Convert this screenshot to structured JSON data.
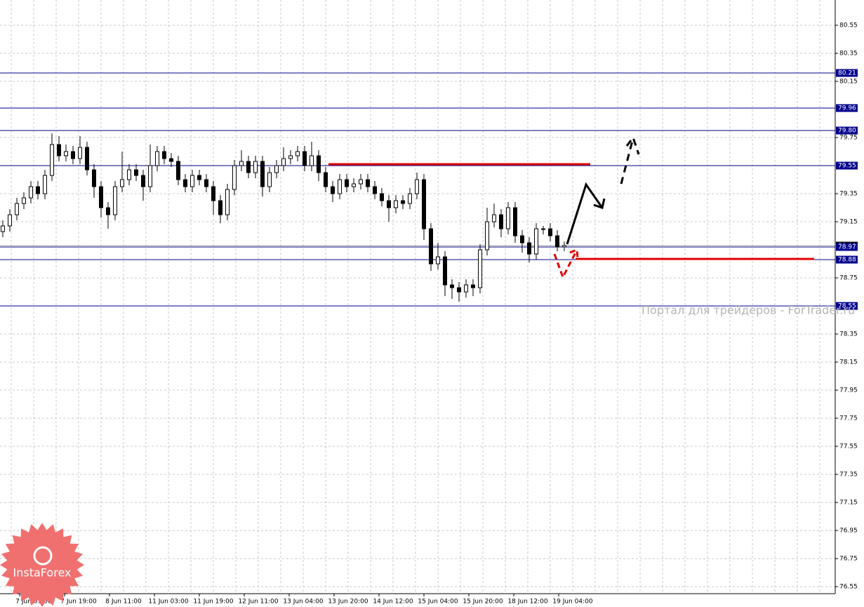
{
  "chart_data": {
    "type": "candlestick",
    "candles": [
      [
        79.08,
        79.16,
        79.04,
        79.12
      ],
      [
        79.12,
        79.24,
        79.08,
        79.2
      ],
      [
        79.2,
        79.32,
        79.16,
        79.28
      ],
      [
        79.28,
        79.36,
        79.24,
        79.32
      ],
      [
        79.32,
        79.44,
        79.28,
        79.4
      ],
      [
        79.4,
        79.44,
        79.31,
        79.35
      ],
      [
        79.35,
        79.52,
        79.31,
        79.48
      ],
      [
        79.48,
        79.78,
        79.44,
        79.7
      ],
      [
        79.7,
        79.76,
        79.58,
        79.62
      ],
      [
        79.62,
        79.7,
        79.58,
        79.65
      ],
      [
        79.65,
        79.69,
        79.56,
        79.6
      ],
      [
        79.6,
        79.76,
        79.56,
        79.68
      ],
      [
        79.68,
        79.72,
        79.48,
        79.52
      ],
      [
        79.52,
        79.56,
        79.32,
        79.4
      ],
      [
        79.4,
        79.44,
        79.18,
        79.25
      ],
      [
        79.25,
        79.29,
        79.1,
        79.2
      ],
      [
        79.2,
        79.44,
        79.16,
        79.4
      ],
      [
        79.4,
        79.65,
        79.36,
        79.45
      ],
      [
        79.45,
        79.56,
        79.41,
        79.52
      ],
      [
        79.52,
        79.56,
        79.44,
        79.48
      ],
      [
        79.48,
        79.52,
        79.3,
        79.4
      ],
      [
        79.4,
        79.7,
        79.36,
        79.55
      ],
      [
        79.55,
        79.69,
        79.51,
        79.65
      ],
      [
        79.65,
        79.69,
        79.56,
        79.6
      ],
      [
        79.6,
        79.64,
        79.54,
        79.58
      ],
      [
        79.58,
        79.62,
        79.41,
        79.45
      ],
      [
        79.45,
        79.49,
        79.36,
        79.4
      ],
      [
        79.4,
        79.52,
        79.36,
        79.48
      ],
      [
        79.48,
        79.52,
        79.41,
        79.45
      ],
      [
        79.45,
        79.49,
        79.36,
        79.4
      ],
      [
        79.4,
        79.44,
        79.2,
        79.3
      ],
      [
        79.3,
        79.34,
        79.14,
        79.2
      ],
      [
        79.2,
        79.42,
        79.16,
        79.38
      ],
      [
        79.38,
        79.59,
        79.34,
        79.55
      ],
      [
        79.55,
        79.66,
        79.51,
        79.58
      ],
      [
        79.58,
        79.62,
        79.46,
        79.5
      ],
      [
        79.5,
        79.62,
        79.46,
        79.58
      ],
      [
        79.58,
        79.62,
        79.33,
        79.4
      ],
      [
        79.4,
        79.54,
        79.36,
        79.5
      ],
      [
        79.5,
        79.59,
        79.46,
        79.55
      ],
      [
        79.55,
        79.68,
        79.51,
        79.6
      ],
      [
        79.6,
        79.66,
        79.56,
        79.62
      ],
      [
        79.62,
        79.69,
        79.58,
        79.65
      ],
      [
        79.65,
        79.69,
        79.51,
        79.55
      ],
      [
        79.55,
        79.72,
        79.51,
        79.62
      ],
      [
        79.62,
        79.66,
        79.44,
        79.5
      ],
      [
        79.5,
        79.54,
        79.36,
        79.4
      ],
      [
        79.4,
        79.44,
        79.29,
        79.35
      ],
      [
        79.35,
        79.49,
        79.31,
        79.45
      ],
      [
        79.45,
        79.49,
        79.36,
        79.4
      ],
      [
        79.4,
        79.46,
        79.36,
        79.42
      ],
      [
        79.42,
        79.49,
        79.38,
        79.45
      ],
      [
        79.45,
        79.49,
        79.36,
        79.4
      ],
      [
        79.4,
        79.44,
        79.31,
        79.35
      ],
      [
        79.35,
        79.39,
        79.26,
        79.3
      ],
      [
        79.3,
        79.34,
        79.15,
        79.25
      ],
      [
        79.25,
        79.34,
        79.21,
        79.3
      ],
      [
        79.3,
        79.34,
        79.24,
        79.28
      ],
      [
        79.28,
        79.39,
        79.24,
        79.35
      ],
      [
        79.35,
        79.5,
        79.31,
        79.45
      ],
      [
        79.45,
        79.49,
        79.02,
        79.1
      ],
      [
        79.1,
        79.14,
        78.8,
        78.85
      ],
      [
        78.85,
        79.0,
        78.81,
        78.9
      ],
      [
        78.9,
        78.94,
        78.62,
        78.7
      ],
      [
        78.7,
        78.74,
        78.6,
        78.68
      ],
      [
        78.68,
        78.72,
        78.58,
        78.65
      ],
      [
        78.65,
        78.74,
        78.61,
        78.7
      ],
      [
        78.7,
        78.74,
        78.62,
        78.68
      ],
      [
        78.68,
        78.99,
        78.64,
        78.95
      ],
      [
        78.95,
        79.25,
        78.91,
        79.15
      ],
      [
        79.15,
        79.28,
        79.11,
        79.2
      ],
      [
        79.2,
        79.24,
        79.04,
        79.1
      ],
      [
        79.1,
        79.29,
        79.06,
        79.25
      ],
      [
        79.25,
        79.29,
        79.0,
        79.05
      ],
      [
        79.05,
        79.09,
        78.93,
        79.0
      ],
      [
        79.0,
        79.04,
        78.86,
        78.92
      ],
      [
        78.92,
        79.14,
        78.88,
        79.1
      ],
      [
        79.1,
        79.12,
        79.06,
        79.1
      ],
      [
        79.1,
        79.14,
        79.01,
        79.05
      ],
      [
        79.05,
        79.09,
        78.94,
        78.97
      ],
      [
        78.97,
        79.01,
        78.94,
        78.98
      ]
    ],
    "candle_color": "#000000",
    "ylim": [
      76.5,
      80.73
    ],
    "yticks": [
      80.55,
      80.35,
      80.15,
      79.75,
      79.35,
      79.15,
      78.75,
      78.35,
      78.15,
      77.95,
      77.75,
      77.55,
      77.35,
      77.15,
      76.95,
      76.75,
      76.55
    ],
    "grid": true,
    "levels": [
      80.21,
      79.96,
      {
        "value": 79.8,
        "label": "79.80"
      },
      79.55,
      78.97,
      78.88,
      78.55
    ],
    "level_color": "#00008b",
    "last_price": 78.98,
    "x_tick_labels": [
      "7 Jun 03:00",
      "7 Jun 19:00",
      "8 Jun 11:00",
      "11 Jun 03:00",
      "11 Jun 19:00",
      "12 Jun 11:00",
      "13 Jun 04:00",
      "13 Jun 20:00",
      "14 Jun 12:00",
      "15 Jun 04:00",
      "15 Jun 20:00",
      "18 Jun 12:00",
      "19 Jun 04:00"
    ]
  },
  "watermark": "Портал для трейдеров - ForTrader.ru",
  "logo": "InstaForex"
}
